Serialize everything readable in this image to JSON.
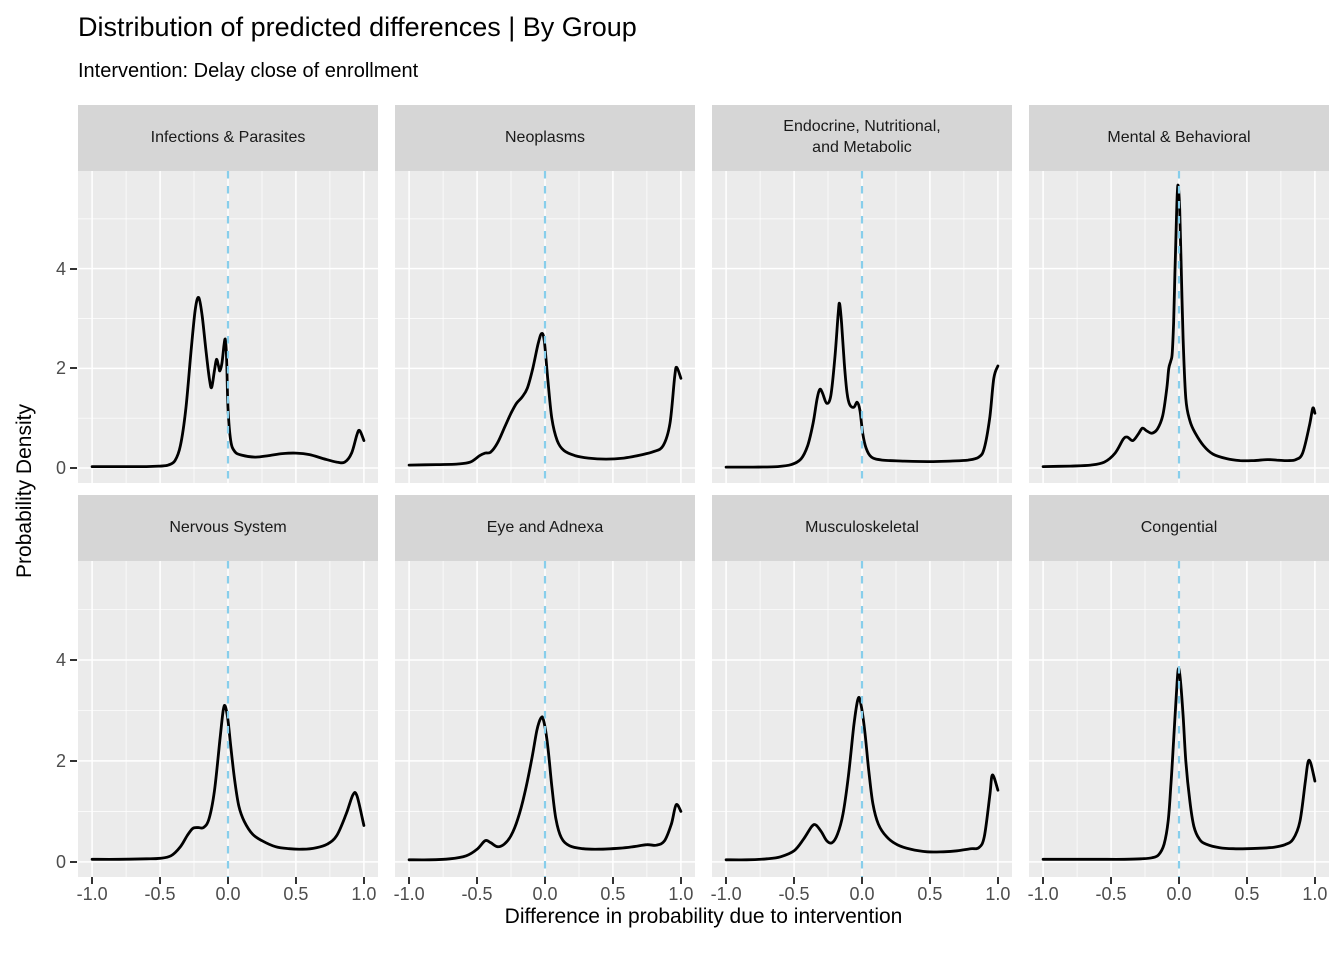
{
  "title": "Distribution of predicted differences | By Group",
  "subtitle": "Intervention: Delay close of enrollment",
  "axes": {
    "x_label": "Difference in probability due to intervention",
    "y_label": "Probability Density",
    "x_ticks": [
      "-1.0",
      "-0.5",
      "0.0",
      "0.5",
      "1.0"
    ],
    "x_tick_values": [
      -1.0,
      -0.5,
      0.0,
      0.5,
      1.0
    ],
    "y_ticks": [
      "0",
      "2",
      "4"
    ],
    "y_tick_values": [
      0,
      2,
      4
    ]
  },
  "colors": {
    "background": "#FFFFFF",
    "panel_bg": "#EBEBEB",
    "strip_bg": "#D6D6D6",
    "grid": "#FFFFFF",
    "curve": "#000000",
    "vline": "#87CEEB",
    "tick_text": "#4D4D4D",
    "tick_mark": "#333333",
    "strip_text": "#1A1A1A"
  },
  "chart_data": {
    "type": "line",
    "subtype": "faceted-density",
    "title": "Distribution of predicted differences | By Group",
    "subtitle": "Intervention: Delay close of enrollment",
    "xlabel": "Difference in probability due to intervention",
    "ylabel": "Probability Density",
    "xlim": [
      -1.104,
      1.104
    ],
    "ylim": [
      -0.3,
      5.96
    ],
    "x_major_gridlines": [
      -1.0,
      -0.5,
      0.0,
      0.5,
      1.0
    ],
    "x_minor_gridlines": [
      -0.75,
      -0.25,
      0.25,
      0.75
    ],
    "y_major_gridlines": [
      0,
      2,
      4
    ],
    "y_minor_gridlines": [
      1,
      3,
      5
    ],
    "grid": "major and minor, white on gray panel",
    "legend": "none",
    "reference_line": {
      "x": 0.0,
      "style": "dashed",
      "color": "#87CEEB"
    },
    "facet_layout": {
      "rows": 2,
      "cols": 4
    },
    "facets": [
      {
        "label": "Infections & Parasites",
        "points": [
          [
            -1,
            0.03
          ],
          [
            -0.8,
            0.03
          ],
          [
            -0.6,
            0.03
          ],
          [
            -0.5,
            0.04
          ],
          [
            -0.44,
            0.06
          ],
          [
            -0.39,
            0.15
          ],
          [
            -0.35,
            0.45
          ],
          [
            -0.31,
            1.2
          ],
          [
            -0.27,
            2.4
          ],
          [
            -0.24,
            3.2
          ],
          [
            -0.215,
            3.42
          ],
          [
            -0.19,
            3.05
          ],
          [
            -0.16,
            2.3
          ],
          [
            -0.135,
            1.75
          ],
          [
            -0.12,
            1.62
          ],
          [
            -0.1,
            1.95
          ],
          [
            -0.085,
            2.18
          ],
          [
            -0.07,
            2.05
          ],
          [
            -0.06,
            1.95
          ],
          [
            -0.045,
            2.1
          ],
          [
            -0.03,
            2.45
          ],
          [
            -0.02,
            2.58
          ],
          [
            -0.01,
            2.2
          ],
          [
            0,
            1.2
          ],
          [
            0.02,
            0.55
          ],
          [
            0.05,
            0.33
          ],
          [
            0.1,
            0.26
          ],
          [
            0.2,
            0.22
          ],
          [
            0.3,
            0.25
          ],
          [
            0.4,
            0.29
          ],
          [
            0.5,
            0.3
          ],
          [
            0.6,
            0.27
          ],
          [
            0.7,
            0.19
          ],
          [
            0.8,
            0.12
          ],
          [
            0.86,
            0.12
          ],
          [
            0.91,
            0.3
          ],
          [
            0.95,
            0.68
          ],
          [
            0.97,
            0.75
          ],
          [
            1,
            0.55
          ]
        ]
      },
      {
        "label": "Neoplasms",
        "points": [
          [
            -1,
            0.06
          ],
          [
            -0.8,
            0.07
          ],
          [
            -0.65,
            0.08
          ],
          [
            -0.55,
            0.12
          ],
          [
            -0.48,
            0.25
          ],
          [
            -0.44,
            0.3
          ],
          [
            -0.4,
            0.32
          ],
          [
            -0.35,
            0.5
          ],
          [
            -0.3,
            0.8
          ],
          [
            -0.25,
            1.1
          ],
          [
            -0.21,
            1.3
          ],
          [
            -0.17,
            1.42
          ],
          [
            -0.13,
            1.6
          ],
          [
            -0.09,
            2.0
          ],
          [
            -0.05,
            2.5
          ],
          [
            -0.025,
            2.7
          ],
          [
            -0.005,
            2.55
          ],
          [
            0.02,
            1.8
          ],
          [
            0.05,
            1.0
          ],
          [
            0.09,
            0.55
          ],
          [
            0.14,
            0.35
          ],
          [
            0.22,
            0.25
          ],
          [
            0.32,
            0.2
          ],
          [
            0.45,
            0.18
          ],
          [
            0.58,
            0.2
          ],
          [
            0.7,
            0.26
          ],
          [
            0.8,
            0.33
          ],
          [
            0.87,
            0.45
          ],
          [
            0.92,
            0.9
          ],
          [
            0.955,
            1.85
          ],
          [
            0.97,
            2.02
          ],
          [
            1,
            1.8
          ]
        ]
      },
      {
        "label": "Endocrine, Nutritional,\nand Metabolic",
        "points": [
          [
            -1,
            0.02
          ],
          [
            -0.8,
            0.02
          ],
          [
            -0.62,
            0.03
          ],
          [
            -0.52,
            0.07
          ],
          [
            -0.45,
            0.18
          ],
          [
            -0.4,
            0.45
          ],
          [
            -0.36,
            0.9
          ],
          [
            -0.33,
            1.4
          ],
          [
            -0.31,
            1.58
          ],
          [
            -0.29,
            1.5
          ],
          [
            -0.26,
            1.3
          ],
          [
            -0.23,
            1.45
          ],
          [
            -0.2,
            2.2
          ],
          [
            -0.175,
            3.1
          ],
          [
            -0.165,
            3.3
          ],
          [
            -0.15,
            2.9
          ],
          [
            -0.13,
            2.1
          ],
          [
            -0.11,
            1.5
          ],
          [
            -0.09,
            1.27
          ],
          [
            -0.06,
            1.22
          ],
          [
            -0.035,
            1.32
          ],
          [
            -0.015,
            1.15
          ],
          [
            0.005,
            0.7
          ],
          [
            0.03,
            0.4
          ],
          [
            0.07,
            0.22
          ],
          [
            0.15,
            0.16
          ],
          [
            0.3,
            0.14
          ],
          [
            0.5,
            0.13
          ],
          [
            0.65,
            0.14
          ],
          [
            0.78,
            0.16
          ],
          [
            0.86,
            0.22
          ],
          [
            0.9,
            0.4
          ],
          [
            0.94,
            1.0
          ],
          [
            0.97,
            1.8
          ],
          [
            1,
            2.05
          ]
        ]
      },
      {
        "label": "Mental & Behavioral",
        "points": [
          [
            -1,
            0.03
          ],
          [
            -0.8,
            0.04
          ],
          [
            -0.65,
            0.06
          ],
          [
            -0.55,
            0.12
          ],
          [
            -0.47,
            0.3
          ],
          [
            -0.41,
            0.58
          ],
          [
            -0.38,
            0.62
          ],
          [
            -0.34,
            0.55
          ],
          [
            -0.3,
            0.68
          ],
          [
            -0.27,
            0.8
          ],
          [
            -0.24,
            0.75
          ],
          [
            -0.2,
            0.7
          ],
          [
            -0.16,
            0.78
          ],
          [
            -0.12,
            1.05
          ],
          [
            -0.09,
            1.6
          ],
          [
            -0.075,
            2.0
          ],
          [
            -0.06,
            2.15
          ],
          [
            -0.05,
            2.3
          ],
          [
            -0.04,
            2.9
          ],
          [
            -0.03,
            3.9
          ],
          [
            -0.02,
            4.9
          ],
          [
            -0.012,
            5.55
          ],
          [
            -0.005,
            5.65
          ],
          [
            0.005,
            5.2
          ],
          [
            0.015,
            4.2
          ],
          [
            0.03,
            2.6
          ],
          [
            0.05,
            1.4
          ],
          [
            0.08,
            0.95
          ],
          [
            0.12,
            0.7
          ],
          [
            0.18,
            0.45
          ],
          [
            0.25,
            0.28
          ],
          [
            0.35,
            0.19
          ],
          [
            0.45,
            0.15
          ],
          [
            0.55,
            0.15
          ],
          [
            0.65,
            0.17
          ],
          [
            0.72,
            0.16
          ],
          [
            0.8,
            0.15
          ],
          [
            0.86,
            0.17
          ],
          [
            0.91,
            0.3
          ],
          [
            0.96,
            0.85
          ],
          [
            0.985,
            1.2
          ],
          [
            1,
            1.1
          ]
        ]
      },
      {
        "label": "Nervous System",
        "points": [
          [
            -1,
            0.05
          ],
          [
            -0.8,
            0.05
          ],
          [
            -0.6,
            0.06
          ],
          [
            -0.5,
            0.07
          ],
          [
            -0.42,
            0.12
          ],
          [
            -0.35,
            0.3
          ],
          [
            -0.3,
            0.52
          ],
          [
            -0.26,
            0.66
          ],
          [
            -0.22,
            0.68
          ],
          [
            -0.18,
            0.68
          ],
          [
            -0.14,
            0.85
          ],
          [
            -0.1,
            1.4
          ],
          [
            -0.06,
            2.4
          ],
          [
            -0.035,
            3.0
          ],
          [
            -0.02,
            3.08
          ],
          [
            0,
            2.8
          ],
          [
            0.02,
            2.3
          ],
          [
            0.05,
            1.6
          ],
          [
            0.08,
            1.1
          ],
          [
            0.12,
            0.8
          ],
          [
            0.18,
            0.55
          ],
          [
            0.25,
            0.42
          ],
          [
            0.35,
            0.3
          ],
          [
            0.45,
            0.26
          ],
          [
            0.55,
            0.25
          ],
          [
            0.65,
            0.28
          ],
          [
            0.73,
            0.35
          ],
          [
            0.8,
            0.52
          ],
          [
            0.87,
            0.95
          ],
          [
            0.92,
            1.33
          ],
          [
            0.95,
            1.3
          ],
          [
            1,
            0.72
          ]
        ]
      },
      {
        "label": "Eye and Adnexa",
        "points": [
          [
            -1,
            0.04
          ],
          [
            -0.85,
            0.04
          ],
          [
            -0.7,
            0.06
          ],
          [
            -0.58,
            0.12
          ],
          [
            -0.5,
            0.25
          ],
          [
            -0.44,
            0.42
          ],
          [
            -0.4,
            0.38
          ],
          [
            -0.35,
            0.3
          ],
          [
            -0.3,
            0.35
          ],
          [
            -0.25,
            0.52
          ],
          [
            -0.2,
            0.85
          ],
          [
            -0.15,
            1.35
          ],
          [
            -0.1,
            2.0
          ],
          [
            -0.06,
            2.6
          ],
          [
            -0.03,
            2.85
          ],
          [
            -0.01,
            2.8
          ],
          [
            0.02,
            2.3
          ],
          [
            0.05,
            1.5
          ],
          [
            0.08,
            0.85
          ],
          [
            0.12,
            0.48
          ],
          [
            0.18,
            0.32
          ],
          [
            0.28,
            0.26
          ],
          [
            0.4,
            0.25
          ],
          [
            0.55,
            0.27
          ],
          [
            0.65,
            0.3
          ],
          [
            0.75,
            0.34
          ],
          [
            0.82,
            0.33
          ],
          [
            0.88,
            0.42
          ],
          [
            0.93,
            0.75
          ],
          [
            0.965,
            1.13
          ],
          [
            1,
            1.0
          ]
        ]
      },
      {
        "label": "Musculoskeletal",
        "points": [
          [
            -1,
            0.04
          ],
          [
            -0.85,
            0.04
          ],
          [
            -0.7,
            0.06
          ],
          [
            -0.6,
            0.1
          ],
          [
            -0.5,
            0.22
          ],
          [
            -0.43,
            0.45
          ],
          [
            -0.37,
            0.7
          ],
          [
            -0.34,
            0.73
          ],
          [
            -0.3,
            0.6
          ],
          [
            -0.26,
            0.42
          ],
          [
            -0.22,
            0.38
          ],
          [
            -0.18,
            0.55
          ],
          [
            -0.14,
            0.95
          ],
          [
            -0.1,
            1.7
          ],
          [
            -0.06,
            2.7
          ],
          [
            -0.03,
            3.22
          ],
          [
            -0.01,
            3.15
          ],
          [
            0.02,
            2.6
          ],
          [
            0.05,
            1.8
          ],
          [
            0.08,
            1.15
          ],
          [
            0.12,
            0.75
          ],
          [
            0.18,
            0.5
          ],
          [
            0.26,
            0.34
          ],
          [
            0.36,
            0.25
          ],
          [
            0.48,
            0.2
          ],
          [
            0.6,
            0.2
          ],
          [
            0.7,
            0.22
          ],
          [
            0.8,
            0.26
          ],
          [
            0.86,
            0.28
          ],
          [
            0.9,
            0.5
          ],
          [
            0.94,
            1.3
          ],
          [
            0.96,
            1.72
          ],
          [
            1,
            1.42
          ]
        ]
      },
      {
        "label": "Congential",
        "points": [
          [
            -1,
            0.05
          ],
          [
            -0.8,
            0.05
          ],
          [
            -0.6,
            0.05
          ],
          [
            -0.4,
            0.05
          ],
          [
            -0.28,
            0.06
          ],
          [
            -0.2,
            0.08
          ],
          [
            -0.15,
            0.14
          ],
          [
            -0.11,
            0.35
          ],
          [
            -0.08,
            0.8
          ],
          [
            -0.06,
            1.5
          ],
          [
            -0.04,
            2.4
          ],
          [
            -0.02,
            3.3
          ],
          [
            -0.005,
            3.82
          ],
          [
            0.01,
            3.6
          ],
          [
            0.03,
            2.9
          ],
          [
            0.05,
            2.0
          ],
          [
            0.08,
            1.2
          ],
          [
            0.11,
            0.7
          ],
          [
            0.15,
            0.45
          ],
          [
            0.2,
            0.35
          ],
          [
            0.3,
            0.28
          ],
          [
            0.4,
            0.26
          ],
          [
            0.5,
            0.26
          ],
          [
            0.6,
            0.27
          ],
          [
            0.7,
            0.29
          ],
          [
            0.78,
            0.34
          ],
          [
            0.84,
            0.45
          ],
          [
            0.89,
            0.8
          ],
          [
            0.93,
            1.6
          ],
          [
            0.95,
            1.98
          ],
          [
            0.97,
            1.95
          ],
          [
            1,
            1.6
          ]
        ]
      }
    ]
  }
}
